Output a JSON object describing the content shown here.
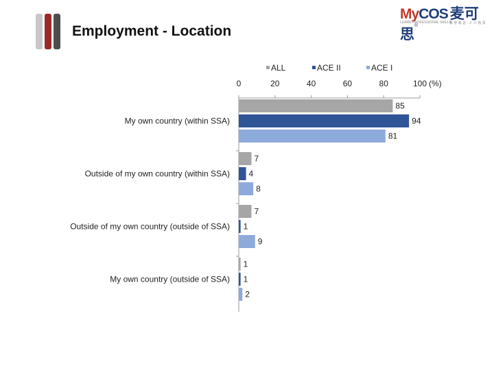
{
  "page": {
    "title": "Employment - Location",
    "title_bar_colors": [
      "#c8c8c8",
      "#9a2a2a",
      "#4d4d4d"
    ]
  },
  "logo": {
    "brand_prefix": "My",
    "brand_rest": "COS",
    "brand_reg": "®",
    "chinese": "麦可思",
    "tagline_left": "LEARN PROFESSIONAL SKILLS",
    "tagline_right": "有 学 有 言 · 人 人 有 责"
  },
  "chart_data": {
    "type": "bar",
    "orientation": "horizontal",
    "categories": [
      "My own country (within SSA)",
      "Outside of my own country (within SSA)",
      "Outside of my own country (outside of SSA)",
      "My own country (outside of SSA)"
    ],
    "series": [
      {
        "name": "ALL",
        "color": "#a6a6a6",
        "values": [
          85,
          7,
          7,
          1
        ]
      },
      {
        "name": "ACE II",
        "color": "#2f5597",
        "values": [
          94,
          4,
          1,
          1
        ]
      },
      {
        "name": "ACE I",
        "color": "#8eaadb",
        "values": [
          81,
          8,
          9,
          2
        ]
      }
    ],
    "xlim": [
      0,
      100
    ],
    "x_ticks": [
      0,
      20,
      40,
      60,
      80,
      100
    ],
    "unit_label": "(%)",
    "axis_position": "top",
    "legend_position": "top",
    "grid": false
  }
}
